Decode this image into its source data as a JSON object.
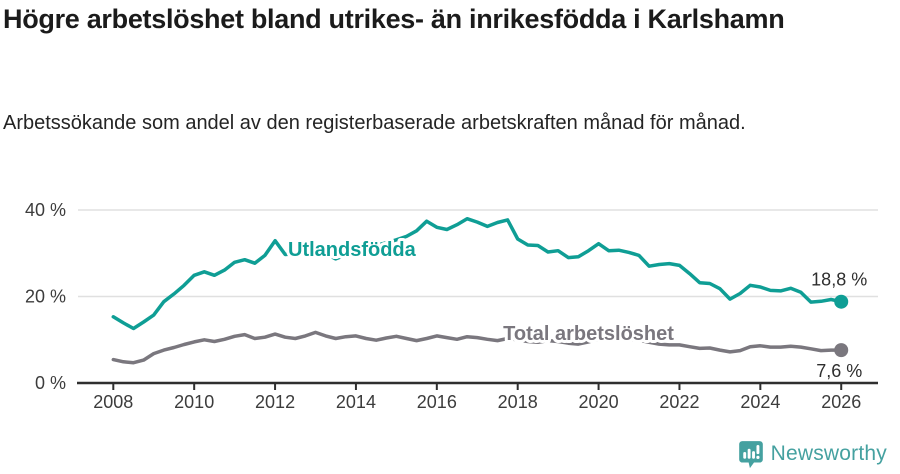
{
  "chart_data": {
    "type": "line",
    "title": "Högre arbetslöshet bland utrikes- än inrikesfödda i Karlshamn",
    "subtitle": "Arbetssökande som andel av den registerbaserade arbetskraften månad för månad.",
    "unit": "%",
    "x_start": 2008.0,
    "x_step": 0.25,
    "xlim": [
      2007.1,
      2026.9
    ],
    "ylim": [
      0,
      43
    ],
    "grid": "horizontal-only",
    "legend_position": "inline-labels",
    "y_ticks": [
      {
        "value": 0,
        "label": "0 %"
      },
      {
        "value": 20,
        "label": "20 %"
      },
      {
        "value": 40,
        "label": "40 %"
      }
    ],
    "x_ticks": [
      {
        "value": 2008,
        "label": "2008"
      },
      {
        "value": 2010,
        "label": "2010"
      },
      {
        "value": 2012,
        "label": "2012"
      },
      {
        "value": 2014,
        "label": "2014"
      },
      {
        "value": 2016,
        "label": "2016"
      },
      {
        "value": 2018,
        "label": "2018"
      },
      {
        "value": 2020,
        "label": "2020"
      },
      {
        "value": 2022,
        "label": "2022"
      },
      {
        "value": 2024,
        "label": "2024"
      },
      {
        "value": 2026,
        "label": "2026"
      }
    ],
    "series": [
      {
        "name": "Utlandsfödda",
        "color": "#0f9e95",
        "line_label": {
          "text": "Utlandsfödda",
          "x": 2012.32,
          "y": 31.0
        },
        "end_label": "18,8 %",
        "end_value": 18.8,
        "values": [
          15.3,
          13.9,
          12.6,
          14.1,
          15.7,
          18.8,
          20.6,
          22.6,
          24.9,
          25.7,
          24.9,
          26.1,
          27.9,
          28.5,
          27.7,
          29.5,
          32.9,
          29.7,
          29.9,
          30.6,
          31.2,
          29.9,
          28.7,
          29.6,
          30.4,
          31.1,
          31.9,
          32.4,
          33.1,
          33.9,
          35.2,
          37.4,
          36.0,
          35.5,
          36.6,
          38.0,
          37.2,
          36.2,
          37.1,
          37.7,
          33.3,
          31.9,
          31.8,
          30.3,
          30.6,
          29.0,
          29.2,
          30.6,
          32.2,
          30.6,
          30.7,
          30.2,
          29.5,
          27.0,
          27.4,
          27.6,
          27.2,
          25.3,
          23.2,
          23.0,
          21.8,
          19.4,
          20.7,
          22.6,
          22.2,
          21.4,
          21.3,
          21.9,
          21.0,
          18.7,
          18.9,
          19.3,
          18.8
        ]
      },
      {
        "name": "Total arbetslöshet",
        "color": "#7a777e",
        "line_label": {
          "text": "Total arbetslöshet",
          "x": 2017.64,
          "y": 11.6
        },
        "end_label": "7,6 %",
        "end_value": 7.6,
        "values": [
          5.4,
          4.9,
          4.7,
          5.3,
          6.8,
          7.6,
          8.2,
          8.9,
          9.5,
          10.0,
          9.6,
          10.1,
          10.8,
          11.2,
          10.3,
          10.6,
          11.3,
          10.6,
          10.3,
          10.9,
          11.7,
          10.9,
          10.3,
          10.7,
          10.9,
          10.3,
          9.9,
          10.4,
          10.8,
          10.3,
          9.8,
          10.3,
          10.9,
          10.5,
          10.1,
          10.7,
          10.5,
          10.1,
          9.8,
          10.3,
          10.0,
          9.6,
          9.4,
          9.8,
          9.6,
          9.2,
          9.0,
          9.5,
          10.2,
          10.8,
          10.5,
          10.2,
          9.9,
          9.4,
          9.0,
          8.8,
          8.8,
          8.4,
          8.0,
          8.1,
          7.6,
          7.2,
          7.5,
          8.4,
          8.6,
          8.3,
          8.3,
          8.5,
          8.3,
          7.9,
          7.5,
          7.6,
          7.6
        ]
      }
    ]
  },
  "footer": {
    "brand": "Newsworthy",
    "brand_color": "#45a1a0",
    "logo_icon": "bar-chart-speech-bubble-icon"
  },
  "colors": {
    "series_foreign_born": "#0f9e95",
    "series_total": "#7a777e",
    "axis": "#2f2f2f",
    "gridline": "#e0e0e0",
    "tick_text": "#3c3c3c",
    "value_label_text": "#2e2e2e"
  }
}
